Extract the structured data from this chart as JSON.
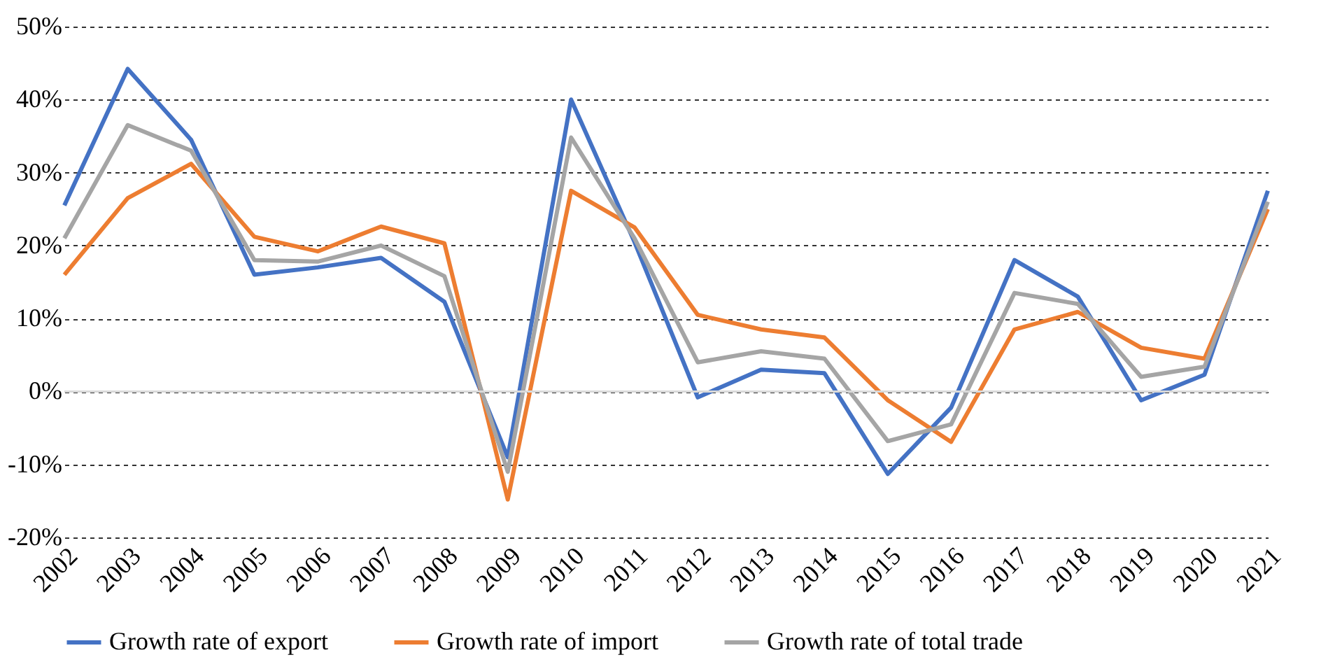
{
  "chart_data": {
    "type": "line",
    "categories": [
      "2002",
      "2003",
      "2004",
      "2005",
      "2006",
      "2007",
      "2008",
      "2009",
      "2010",
      "2011",
      "2012",
      "2013",
      "2014",
      "2015",
      "2016",
      "2017",
      "2018",
      "2019",
      "2020",
      "2021"
    ],
    "series": [
      {
        "name": "Growth rate of export",
        "color": "#4472c4",
        "values": [
          25.5,
          44.2,
          34.5,
          16,
          17,
          18.3,
          12.3,
          -9,
          40,
          20.5,
          -0.8,
          3,
          2.5,
          -11.3,
          -2.2,
          18,
          13,
          -1.2,
          2.3,
          27.5
        ]
      },
      {
        "name": "Growth rate of import",
        "color": "#ed7d31",
        "values": [
          16,
          26.5,
          31.2,
          21.2,
          19.2,
          22.6,
          20.3,
          -14.8,
          27.5,
          22.5,
          10.5,
          8.5,
          7.4,
          -1.2,
          -6.9,
          8.5,
          10.9,
          6,
          4.5,
          25
        ]
      },
      {
        "name": "Growth rate of total trade",
        "color": "#a5a5a5",
        "values": [
          21,
          36.5,
          33,
          18,
          17.8,
          20,
          15.8,
          -11,
          34.8,
          21,
          4,
          5.5,
          4.5,
          -6.8,
          -4.5,
          13.5,
          12,
          2,
          3.4,
          26
        ]
      }
    ],
    "ylim": [
      -20,
      50
    ],
    "yticks": [
      {
        "value": -20,
        "label": "-20%"
      },
      {
        "value": -10,
        "label": "-10%"
      },
      {
        "value": 0,
        "label": "0%"
      },
      {
        "value": 10,
        "label": "10%"
      },
      {
        "value": 20,
        "label": "20%"
      },
      {
        "value": 30,
        "label": "30%"
      },
      {
        "value": 40,
        "label": "40%"
      },
      {
        "value": 50,
        "label": "50%"
      }
    ],
    "ref_lines": [
      {
        "axis": "y",
        "value": 0,
        "label": null,
        "color": "#d9d9d9",
        "line_style": "solid"
      }
    ],
    "grid": "y",
    "legend": "bottom",
    "marker": "none",
    "line_style": "solid"
  }
}
